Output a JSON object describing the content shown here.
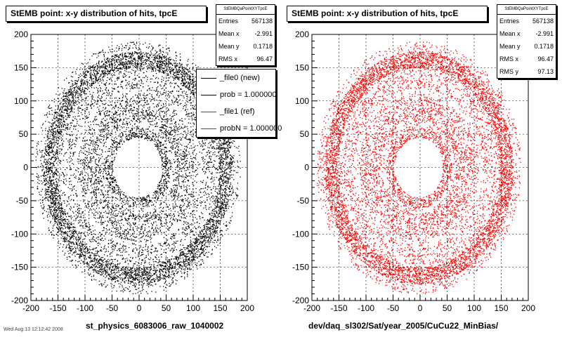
{
  "footer_note": "Wed Aug 13 12:12:42 2008",
  "chart_data": [
    {
      "type": "scatter",
      "title": "StEMB point: x-y distribution of hits, tpcE",
      "xlabel": "st_physics_6083006_raw_1040002",
      "ylabel": "",
      "xlim": [
        -200,
        200
      ],
      "ylim": [
        -200,
        200
      ],
      "xticks": [
        -200,
        -150,
        -100,
        -50,
        0,
        50,
        100,
        150,
        200
      ],
      "yticks": [
        -200,
        -150,
        -100,
        -50,
        0,
        50,
        100,
        150,
        200
      ],
      "grid": true,
      "color": "#000000",
      "distribution": {
        "shape": "ring",
        "inner_radius": 45,
        "outer_radius": 190,
        "gaps_at_radius": [
          65,
          115
        ],
        "dense_band_radius": [
          150,
          175
        ]
      },
      "stats": {
        "name": "StEMBQaPointXYTpcE",
        "rows": [
          {
            "label": "Entries",
            "value": "567138"
          },
          {
            "label": "Mean x",
            "value": "-2.991"
          },
          {
            "label": "Mean y",
            "value": "0.1718"
          },
          {
            "label": "RMS x",
            "value": "96.47"
          }
        ]
      },
      "legend": {
        "placement": "top-right",
        "entries": [
          {
            "label": "_file0 (new)",
            "color": "#000000"
          },
          {
            "label": "prob = 1.000000",
            "color": "#000000"
          },
          {
            "label": "_file1 (ref)",
            "color": "#ff0000"
          },
          {
            "label": "probN = 1.000000",
            "color": "#ff0000"
          }
        ]
      }
    },
    {
      "type": "scatter",
      "title": "StEMB point: x-y distribution of hits, tpcE",
      "xlabel": "dev/daq_sl302/Sat/year_2005/CuCu22_MinBias/",
      "ylabel": "",
      "xlim": [
        -200,
        200
      ],
      "ylim": [
        -200,
        200
      ],
      "xticks": [
        -200,
        -150,
        -100,
        -50,
        0,
        50,
        100,
        150,
        200
      ],
      "yticks": [
        -200,
        -150,
        -100,
        -50,
        0,
        50,
        100,
        150,
        200
      ],
      "grid": true,
      "color": "#ff0000",
      "distribution": {
        "shape": "ring",
        "inner_radius": 45,
        "outer_radius": 190,
        "gaps_at_radius": [
          65,
          115
        ],
        "dense_band_radius": [
          150,
          175
        ]
      },
      "stats": {
        "name": "StEMBQaPointXYTpcE",
        "rows": [
          {
            "label": "Entries",
            "value": "567138"
          },
          {
            "label": "Mean x",
            "value": "-2.991"
          },
          {
            "label": "Mean y",
            "value": "0.1718"
          },
          {
            "label": "RMS x",
            "value": "96.47"
          },
          {
            "label": "RMS y",
            "value": "97.13"
          }
        ]
      }
    }
  ]
}
